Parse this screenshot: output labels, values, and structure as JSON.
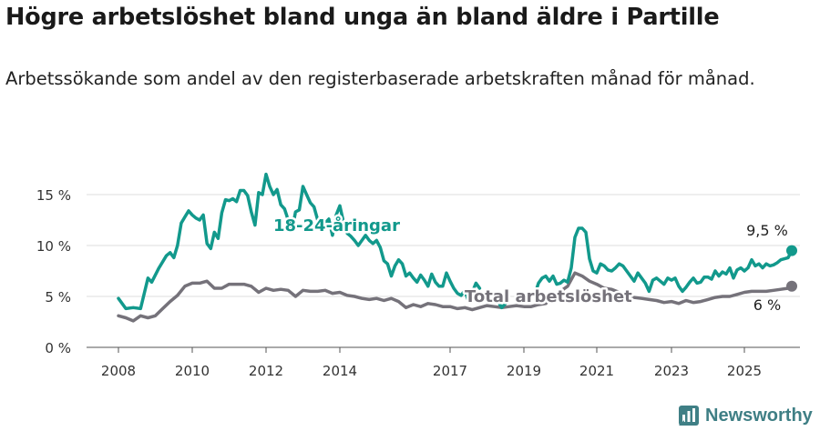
{
  "header": {
    "title": "Högre arbetslöshet bland unga än bland äldre i Partille",
    "subtitle": "Arbetssökande som andel av den registerbaserade arbetskraften månad för månad."
  },
  "brand": {
    "name": "Newsworthy"
  },
  "colors": {
    "youth": "#12998c",
    "total": "#75727a",
    "grid": "#dddddd",
    "axis": "#555555"
  },
  "chart_data": {
    "type": "line",
    "title": "",
    "xlabel": "",
    "ylabel": "",
    "ylim": [
      0,
      17.5
    ],
    "xlim": [
      2007.6,
      2026.3
    ],
    "x_ticks": [
      2008,
      2010,
      2012,
      2014,
      2017,
      2019,
      2021,
      2023,
      2025
    ],
    "x_tick_labels": [
      "2008",
      "2010",
      "2012",
      "2014",
      "2017",
      "2019",
      "2021",
      "2023",
      "2025"
    ],
    "y_ticks": [
      0,
      5,
      10,
      15
    ],
    "y_tick_labels": [
      "0 %",
      "5 %",
      "10 %",
      "15 %"
    ],
    "grid": true,
    "legend": "direct-labels",
    "series": [
      {
        "name": "18-24-åringar",
        "color": "#12998c",
        "end_label": "9,5 %",
        "points": [
          [
            2008.0,
            4.8
          ],
          [
            2008.2,
            3.8
          ],
          [
            2008.4,
            3.9
          ],
          [
            2008.6,
            3.8
          ],
          [
            2008.8,
            6.8
          ],
          [
            2008.9,
            6.4
          ],
          [
            2009.1,
            7.8
          ],
          [
            2009.3,
            9.0
          ],
          [
            2009.4,
            9.3
          ],
          [
            2009.5,
            8.8
          ],
          [
            2009.6,
            10.0
          ],
          [
            2009.7,
            12.2
          ],
          [
            2009.8,
            12.8
          ],
          [
            2009.9,
            13.4
          ],
          [
            2010.0,
            13.0
          ],
          [
            2010.1,
            12.7
          ],
          [
            2010.2,
            12.5
          ],
          [
            2010.3,
            13.0
          ],
          [
            2010.4,
            10.2
          ],
          [
            2010.5,
            9.7
          ],
          [
            2010.6,
            11.3
          ],
          [
            2010.7,
            10.7
          ],
          [
            2010.8,
            13.2
          ],
          [
            2010.9,
            14.5
          ],
          [
            2011.0,
            14.4
          ],
          [
            2011.1,
            14.6
          ],
          [
            2011.2,
            14.3
          ],
          [
            2011.3,
            15.4
          ],
          [
            2011.4,
            15.4
          ],
          [
            2011.5,
            14.9
          ],
          [
            2011.6,
            13.3
          ],
          [
            2011.7,
            12.0
          ],
          [
            2011.8,
            15.2
          ],
          [
            2011.9,
            15.0
          ],
          [
            2012.0,
            17.0
          ],
          [
            2012.1,
            15.8
          ],
          [
            2012.2,
            15.0
          ],
          [
            2012.3,
            15.5
          ],
          [
            2012.4,
            14.0
          ],
          [
            2012.5,
            13.6
          ],
          [
            2012.6,
            12.5
          ],
          [
            2012.7,
            11.5
          ],
          [
            2012.8,
            13.3
          ],
          [
            2012.9,
            13.5
          ],
          [
            2013.0,
            15.8
          ],
          [
            2013.1,
            15.0
          ],
          [
            2013.2,
            14.2
          ],
          [
            2013.3,
            13.8
          ],
          [
            2013.4,
            12.5
          ],
          [
            2013.5,
            12.0
          ],
          [
            2013.6,
            12.2
          ],
          [
            2013.7,
            12.6
          ],
          [
            2013.8,
            11.0
          ],
          [
            2013.9,
            13.0
          ],
          [
            2014.0,
            13.9
          ],
          [
            2014.1,
            12.3
          ],
          [
            2014.2,
            11.2
          ],
          [
            2014.3,
            10.9
          ],
          [
            2014.4,
            10.5
          ],
          [
            2014.5,
            10.0
          ],
          [
            2014.6,
            10.5
          ],
          [
            2014.7,
            11.0
          ],
          [
            2014.8,
            10.5
          ],
          [
            2014.9,
            10.2
          ],
          [
            2015.0,
            10.5
          ],
          [
            2015.1,
            9.8
          ],
          [
            2015.2,
            8.5
          ],
          [
            2015.3,
            8.2
          ],
          [
            2015.4,
            7.0
          ],
          [
            2015.5,
            8.0
          ],
          [
            2015.6,
            8.6
          ],
          [
            2015.7,
            8.2
          ],
          [
            2015.8,
            7.0
          ],
          [
            2015.9,
            7.3
          ],
          [
            2016.0,
            6.8
          ],
          [
            2016.1,
            6.4
          ],
          [
            2016.2,
            7.1
          ],
          [
            2016.3,
            6.6
          ],
          [
            2016.4,
            6.0
          ],
          [
            2016.5,
            7.2
          ],
          [
            2016.6,
            6.4
          ],
          [
            2016.7,
            6.0
          ],
          [
            2016.8,
            6.0
          ],
          [
            2016.9,
            7.3
          ],
          [
            2017.0,
            6.5
          ],
          [
            2017.1,
            5.8
          ],
          [
            2017.2,
            5.3
          ],
          [
            2017.3,
            5.1
          ],
          [
            2017.4,
            5.6
          ],
          [
            2017.5,
            4.5
          ],
          [
            2017.6,
            5.4
          ],
          [
            2017.7,
            6.3
          ],
          [
            2017.8,
            5.8
          ]
        ],
        "points_2": [
          [
            2018.3,
            4.5
          ],
          [
            2018.4,
            3.9
          ],
          [
            2018.5,
            4.3
          ]
        ],
        "points_3": [
          [
            2019.3,
            5.2
          ],
          [
            2019.4,
            6.3
          ],
          [
            2019.5,
            6.8
          ],
          [
            2019.6,
            7.0
          ],
          [
            2019.7,
            6.5
          ],
          [
            2019.8,
            7.0
          ],
          [
            2019.9,
            6.2
          ],
          [
            2020.0,
            6.3
          ],
          [
            2020.1,
            6.6
          ],
          [
            2020.2,
            6.4
          ],
          [
            2020.3,
            7.8
          ],
          [
            2020.4,
            10.8
          ],
          [
            2020.5,
            11.7
          ],
          [
            2020.6,
            11.7
          ],
          [
            2020.7,
            11.3
          ],
          [
            2020.8,
            8.7
          ],
          [
            2020.9,
            7.5
          ],
          [
            2021.0,
            7.3
          ],
          [
            2021.1,
            8.2
          ],
          [
            2021.2,
            8.0
          ],
          [
            2021.3,
            7.6
          ],
          [
            2021.4,
            7.5
          ],
          [
            2021.5,
            7.8
          ],
          [
            2021.6,
            8.2
          ],
          [
            2021.7,
            8.0
          ],
          [
            2021.8,
            7.5
          ],
          [
            2021.9,
            7.0
          ],
          [
            2022.0,
            6.5
          ],
          [
            2022.1,
            7.3
          ],
          [
            2022.2,
            6.8
          ],
          [
            2022.3,
            6.3
          ],
          [
            2022.4,
            5.5
          ],
          [
            2022.5,
            6.6
          ],
          [
            2022.6,
            6.8
          ],
          [
            2022.7,
            6.5
          ],
          [
            2022.8,
            6.2
          ],
          [
            2022.9,
            6.8
          ],
          [
            2023.0,
            6.6
          ],
          [
            2023.1,
            6.8
          ],
          [
            2023.2,
            6.0
          ],
          [
            2023.3,
            5.5
          ],
          [
            2023.4,
            5.9
          ],
          [
            2023.5,
            6.4
          ],
          [
            2023.6,
            6.8
          ],
          [
            2023.7,
            6.3
          ],
          [
            2023.8,
            6.4
          ],
          [
            2023.9,
            6.9
          ],
          [
            2024.0,
            6.9
          ],
          [
            2024.1,
            6.7
          ],
          [
            2024.2,
            7.5
          ],
          [
            2024.3,
            7.0
          ],
          [
            2024.4,
            7.4
          ],
          [
            2024.5,
            7.2
          ],
          [
            2024.6,
            7.8
          ],
          [
            2024.7,
            6.8
          ],
          [
            2024.8,
            7.6
          ],
          [
            2024.9,
            7.8
          ],
          [
            2025.0,
            7.5
          ],
          [
            2025.1,
            7.8
          ],
          [
            2025.2,
            8.6
          ],
          [
            2025.3,
            8.0
          ],
          [
            2025.4,
            8.2
          ],
          [
            2025.5,
            7.8
          ],
          [
            2025.6,
            8.2
          ],
          [
            2025.7,
            8.0
          ],
          [
            2025.8,
            8.1
          ],
          [
            2025.9,
            8.3
          ],
          [
            2026.0,
            8.6
          ],
          [
            2026.1,
            8.7
          ],
          [
            2026.2,
            8.8
          ],
          [
            2026.3,
            9.5
          ]
        ]
      },
      {
        "name": "Total arbetslöshet",
        "color": "#75727a",
        "end_label": "6 %",
        "points": [
          [
            2008.0,
            3.1
          ],
          [
            2008.2,
            2.9
          ],
          [
            2008.4,
            2.6
          ],
          [
            2008.6,
            3.1
          ],
          [
            2008.8,
            2.9
          ],
          [
            2009.0,
            3.1
          ],
          [
            2009.2,
            3.8
          ],
          [
            2009.4,
            4.5
          ],
          [
            2009.6,
            5.1
          ],
          [
            2009.8,
            6.0
          ],
          [
            2010.0,
            6.3
          ],
          [
            2010.2,
            6.3
          ],
          [
            2010.4,
            6.5
          ],
          [
            2010.6,
            5.8
          ],
          [
            2010.8,
            5.8
          ],
          [
            2011.0,
            6.2
          ],
          [
            2011.2,
            6.2
          ],
          [
            2011.4,
            6.2
          ],
          [
            2011.6,
            6.0
          ],
          [
            2011.8,
            5.4
          ],
          [
            2012.0,
            5.8
          ],
          [
            2012.2,
            5.6
          ],
          [
            2012.4,
            5.7
          ],
          [
            2012.6,
            5.6
          ],
          [
            2012.8,
            5.0
          ],
          [
            2013.0,
            5.6
          ],
          [
            2013.2,
            5.5
          ],
          [
            2013.4,
            5.5
          ],
          [
            2013.6,
            5.6
          ],
          [
            2013.8,
            5.3
          ],
          [
            2014.0,
            5.4
          ],
          [
            2014.2,
            5.1
          ],
          [
            2014.4,
            5.0
          ],
          [
            2014.6,
            4.8
          ],
          [
            2014.8,
            4.7
          ],
          [
            2015.0,
            4.8
          ],
          [
            2015.2,
            4.6
          ],
          [
            2015.4,
            4.8
          ],
          [
            2015.6,
            4.5
          ],
          [
            2015.8,
            3.9
          ],
          [
            2016.0,
            4.2
          ],
          [
            2016.2,
            4.0
          ],
          [
            2016.4,
            4.3
          ],
          [
            2016.6,
            4.2
          ],
          [
            2016.8,
            4.0
          ],
          [
            2017.0,
            4.0
          ],
          [
            2017.2,
            3.8
          ],
          [
            2017.4,
            3.9
          ],
          [
            2017.6,
            3.7
          ],
          [
            2017.8,
            3.9
          ],
          [
            2018.0,
            4.1
          ],
          [
            2018.2,
            4.0
          ],
          [
            2018.4,
            3.9
          ],
          [
            2018.6,
            4.0
          ],
          [
            2018.8,
            4.1
          ],
          [
            2019.0,
            4.0
          ],
          [
            2019.2,
            4.0
          ],
          [
            2019.4,
            4.2
          ],
          [
            2019.6,
            4.3
          ],
          [
            2019.8,
            5.1
          ],
          [
            2020.0,
            5.5
          ],
          [
            2020.2,
            6.0
          ],
          [
            2020.4,
            7.3
          ],
          [
            2020.6,
            7.0
          ],
          [
            2020.8,
            6.5
          ],
          [
            2021.0,
            6.2
          ],
          [
            2021.2,
            5.8
          ],
          [
            2021.4,
            5.7
          ],
          [
            2021.6,
            5.4
          ],
          [
            2021.8,
            5.0
          ],
          [
            2022.0,
            4.9
          ],
          [
            2022.2,
            4.8
          ],
          [
            2022.4,
            4.7
          ],
          [
            2022.6,
            4.6
          ],
          [
            2022.8,
            4.4
          ],
          [
            2023.0,
            4.5
          ],
          [
            2023.2,
            4.3
          ],
          [
            2023.4,
            4.6
          ],
          [
            2023.6,
            4.4
          ],
          [
            2023.8,
            4.5
          ],
          [
            2024.0,
            4.7
          ],
          [
            2024.2,
            4.9
          ],
          [
            2024.4,
            5.0
          ],
          [
            2024.6,
            5.0
          ],
          [
            2024.8,
            5.2
          ],
          [
            2025.0,
            5.4
          ],
          [
            2025.2,
            5.5
          ],
          [
            2025.4,
            5.5
          ],
          [
            2025.6,
            5.5
          ],
          [
            2025.8,
            5.6
          ],
          [
            2026.0,
            5.7
          ],
          [
            2026.2,
            5.8
          ],
          [
            2026.3,
            6.0
          ]
        ]
      }
    ]
  }
}
